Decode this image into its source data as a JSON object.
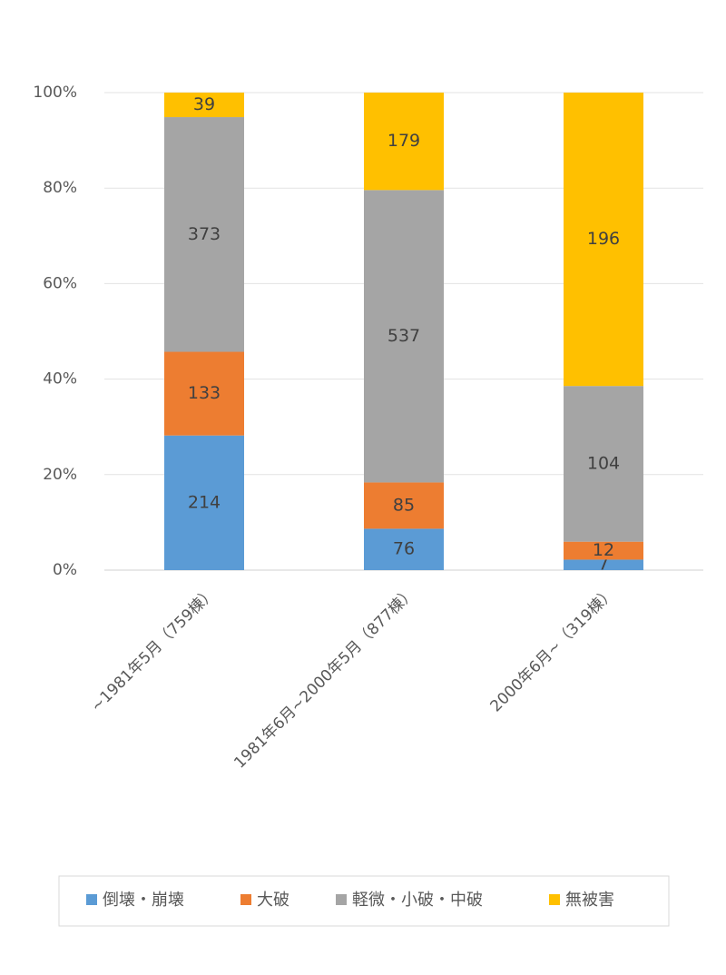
{
  "chart_data": {
    "type": "bar",
    "stacking": "percent",
    "categories": [
      "~1981年5月（759棟）",
      "1981年6月~2000年5月（877棟）",
      "2000年6月~（319棟）"
    ],
    "series": [
      {
        "name": "倒壊・崩壊",
        "color": "#5b9bd5",
        "values": [
          214,
          76,
          7
        ]
      },
      {
        "name": "大破",
        "color": "#ed7d31",
        "values": [
          133,
          85,
          12
        ]
      },
      {
        "name": "軽微・小破・中破",
        "color": "#a5a5a5",
        "values": [
          373,
          537,
          104
        ]
      },
      {
        "name": "無被害",
        "color": "#ffc000",
        "values": [
          39,
          179,
          196
        ]
      }
    ],
    "ylim": [
      0,
      100
    ],
    "yticks": [
      {
        "value": 0,
        "label": "0%"
      },
      {
        "value": 20,
        "label": "20%"
      },
      {
        "value": 40,
        "label": "40%"
      },
      {
        "value": 60,
        "label": "60%"
      },
      {
        "value": 80,
        "label": "80%"
      },
      {
        "value": 100,
        "label": "100%"
      }
    ],
    "grid": true,
    "legend": "bottom"
  }
}
